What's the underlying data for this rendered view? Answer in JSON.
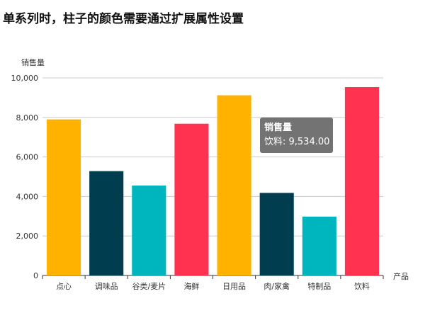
{
  "title": "单系列时，柱子的颜色需要通过扩展属性设置",
  "chart_data": {
    "type": "bar",
    "categories": [
      "点心",
      "调味品",
      "谷类/麦片",
      "海鲜",
      "日用品",
      "肉/家禽",
      "特制品",
      "饮料"
    ],
    "series": [
      {
        "name": "销售量",
        "values": [
          7900,
          5280,
          4550,
          7680,
          9120,
          4180,
          2980,
          9534
        ],
        "colors": [
          "#FFB300",
          "#003D4E",
          "#00B6BE",
          "#FF3350",
          "#FFB300",
          "#003D4E",
          "#00B6BE",
          "#FF3350"
        ]
      }
    ],
    "xlabel": "产品",
    "ylabel": "销售量",
    "ylim": [
      0,
      10000
    ],
    "yticks": [
      0,
      2000,
      4000,
      6000,
      8000,
      10000
    ],
    "ytick_labels": [
      "0",
      "2,000",
      "4,000",
      "6,000",
      "8,000",
      "10,000"
    ],
    "grid": true,
    "tooltip": {
      "title": "销售量",
      "label": "饮料: 9,534.00"
    }
  }
}
